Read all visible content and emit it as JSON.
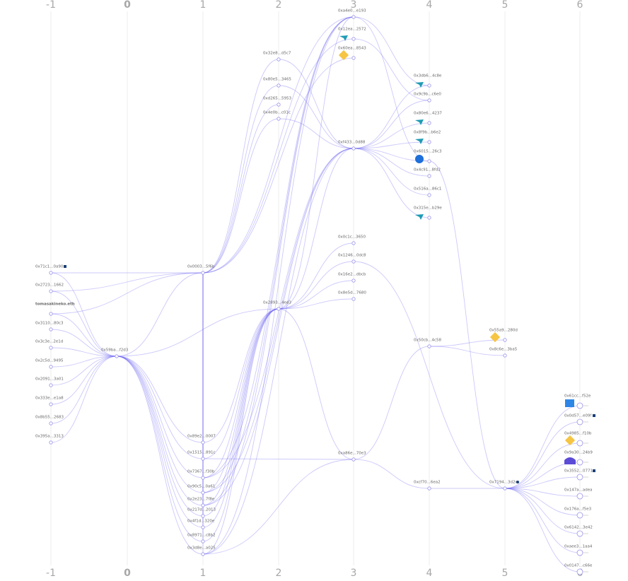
{
  "columns": [
    "-1",
    "0",
    "1",
    "2",
    "3",
    "4",
    "5",
    "6"
  ],
  "nodes": [
    "0x71c1...0a90",
    "0x2723...1662",
    "tomasakineko.eth",
    "0x3110...80c3",
    "0x3c3e...2e1d",
    "0x2c5d...9495",
    "0x2091...3a01",
    "0x333e...e1a8",
    "0x8b55...2683",
    "0x395a...3313",
    "0x59ba...f2d3",
    "0x0003...5f6b",
    "0x89e2...0007",
    "0x1515...891c",
    "0x7367...f30b",
    "0x90c5...0a61",
    "0x2e23...7f8e",
    "0x217d...2013",
    "0x4f1d...320e",
    "0x8971...c8b2",
    "0x3d8e...a025",
    "0x32e8...d5c7",
    "0x80e5...3465",
    "0xd265...5953",
    "0x4e0b...c01c",
    "0x2893...4ed3",
    "0xa4e0...e193",
    "0x12ea...2572",
    "0x60ea...8543",
    "0xf433...0d88",
    "0x0c1c...3650",
    "0x1246...0dc8",
    "0x16e2...dbcb",
    "0x8e5d...7680",
    "0xa86e...70e3",
    "0x3db6...4c8e",
    "0x9c9b...c6e0",
    "0x80e6...4237",
    "0x8f9b...b6e2",
    "0x6015...26c3",
    "0x4c91...8fd2",
    "0x516a...86c1",
    "0x315e...b29e",
    "0x50cb...4c58",
    "0xcf70...6ea2",
    "0x55a9...280d",
    "0x8c6e...3ba5",
    "0x7194...3d2c",
    "0x61cc...f52e",
    "0x0d57...e09f",
    "0x4985...f10b",
    "0x9a30...24b9",
    "0x3552...0771",
    "0x147a...adea",
    "0x176a...f5e3",
    "0x6142...3e42",
    "0xaee3...1aa4",
    "0x0147...c66e"
  ]
}
